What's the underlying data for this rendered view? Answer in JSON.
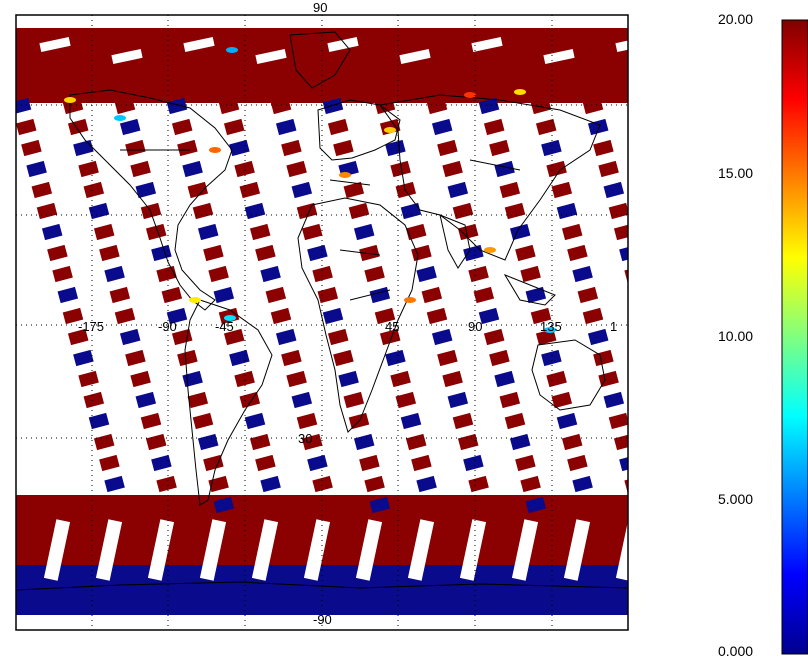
{
  "map": {
    "projection": "cylindrical (lon/lat)",
    "grid_style": "dotted",
    "swath_colors": {
      "high": "#8b0000",
      "low": "#0a0a8c",
      "coast": "#000000",
      "background": "#ffffff"
    },
    "lat_labels": [
      "90",
      "30",
      "-30",
      "-90"
    ],
    "lon_labels": [
      "-175",
      "-90",
      "-45",
      "45",
      "90",
      "135",
      "1"
    ]
  },
  "colorbar": {
    "min": 0,
    "max": 20,
    "ticks": [
      "20.00",
      "15.00",
      "10.00",
      "5.000",
      "0.000"
    ],
    "colors": [
      "#00008f",
      "#0000ff",
      "#0080ff",
      "#00ffff",
      "#80ff80",
      "#ffff00",
      "#ff8000",
      "#ff0000",
      "#800000"
    ]
  }
}
